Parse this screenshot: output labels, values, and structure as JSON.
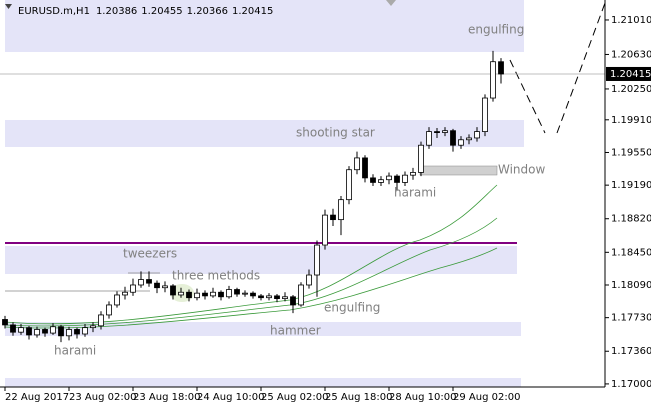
{
  "chart_data": {
    "type": "candlestick",
    "symbol": "EURUSD.m,H1",
    "header_values": [
      1.20386,
      1.20455,
      1.20366,
      1.20415
    ],
    "candles": [
      [
        1.1771,
        1.1775,
        1.1761,
        1.1765
      ],
      [
        1.1765,
        1.1768,
        1.1753,
        1.1757
      ],
      [
        1.1757,
        1.1766,
        1.1754,
        1.1762
      ],
      [
        1.1762,
        1.1764,
        1.1749,
        1.1754
      ],
      [
        1.1754,
        1.1763,
        1.1751,
        1.176
      ],
      [
        1.176,
        1.1762,
        1.1752,
        1.1756
      ],
      [
        1.1756,
        1.1767,
        1.1754,
        1.1763
      ],
      [
        1.1763,
        1.1765,
        1.1746,
        1.1753
      ],
      [
        1.1753,
        1.1763,
        1.1748,
        1.176
      ],
      [
        1.176,
        1.1762,
        1.175,
        1.1755
      ],
      [
        1.1755,
        1.1766,
        1.1752,
        1.1762
      ],
      [
        1.1762,
        1.1768,
        1.1757,
        1.1764
      ],
      [
        1.1764,
        1.178,
        1.176,
        1.1776
      ],
      [
        1.1776,
        1.1791,
        1.1772,
        1.1787
      ],
      [
        1.1787,
        1.1802,
        1.1784,
        1.1798
      ],
      [
        1.1798,
        1.1807,
        1.1793,
        1.1801
      ],
      [
        1.1801,
        1.1816,
        1.1797,
        1.1809
      ],
      [
        1.1809,
        1.1824,
        1.1806,
        1.1815
      ],
      [
        1.1815,
        1.1824,
        1.1807,
        1.1811
      ],
      [
        1.1811,
        1.1814,
        1.18,
        1.1806
      ],
      [
        1.1806,
        1.1813,
        1.1801,
        1.1808
      ],
      [
        1.1808,
        1.181,
        1.1793,
        1.1798
      ],
      [
        1.1798,
        1.1806,
        1.1795,
        1.1801
      ],
      [
        1.1801,
        1.1804,
        1.1791,
        1.1795
      ],
      [
        1.1795,
        1.1805,
        1.1792,
        1.18
      ],
      [
        1.18,
        1.1803,
        1.1793,
        1.1797
      ],
      [
        1.1797,
        1.1806,
        1.1795,
        1.1801
      ],
      [
        1.1801,
        1.1803,
        1.1792,
        1.1796
      ],
      [
        1.1796,
        1.1808,
        1.1794,
        1.1804
      ],
      [
        1.1804,
        1.1806,
        1.1796,
        1.1799
      ],
      [
        1.1799,
        1.1803,
        1.1796,
        1.18
      ],
      [
        1.18,
        1.1802,
        1.1794,
        1.1797
      ],
      [
        1.1797,
        1.1799,
        1.1792,
        1.1795
      ],
      [
        1.1795,
        1.18,
        1.1792,
        1.1797
      ],
      [
        1.1797,
        1.1799,
        1.179,
        1.1794
      ],
      [
        1.1794,
        1.1801,
        1.1791,
        1.1796
      ],
      [
        1.1796,
        1.1798,
        1.1778,
        1.1787
      ],
      [
        1.1787,
        1.1812,
        1.1785,
        1.1809
      ],
      [
        1.1809,
        1.1826,
        1.1805,
        1.182
      ],
      [
        1.182,
        1.1858,
        1.1796,
        1.1853
      ],
      [
        1.1853,
        1.1892,
        1.1848,
        1.1886
      ],
      [
        1.1886,
        1.1893,
        1.1874,
        1.1881
      ],
      [
        1.1881,
        1.1907,
        1.1864,
        1.1903
      ],
      [
        1.1903,
        1.194,
        1.1898,
        1.1936
      ],
      [
        1.1936,
        1.1956,
        1.1931,
        1.1949
      ],
      [
        1.1949,
        1.1952,
        1.1922,
        1.1927
      ],
      [
        1.1927,
        1.1931,
        1.1918,
        1.1922
      ],
      [
        1.1922,
        1.1929,
        1.1918,
        1.1925
      ],
      [
        1.1925,
        1.1933,
        1.192,
        1.1929
      ],
      [
        1.1929,
        1.1931,
        1.1913,
        1.1922
      ],
      [
        1.1922,
        1.1934,
        1.1918,
        1.193
      ],
      [
        1.193,
        1.1938,
        1.1925,
        1.1933
      ],
      [
        1.1933,
        1.1967,
        1.1929,
        1.1963
      ],
      [
        1.1963,
        1.1983,
        1.1959,
        1.1978
      ],
      [
        1.1978,
        1.1982,
        1.1971,
        1.1977
      ],
      [
        1.1977,
        1.1983,
        1.1973,
        1.1979
      ],
      [
        1.1979,
        1.1981,
        1.1956,
        1.1963
      ],
      [
        1.1963,
        1.1973,
        1.1959,
        1.1969
      ],
      [
        1.1969,
        1.1975,
        1.1964,
        1.1971
      ],
      [
        1.1971,
        1.1983,
        1.1967,
        1.1978
      ],
      [
        1.1978,
        1.2019,
        1.1973,
        1.2015
      ],
      [
        1.2015,
        1.2067,
        1.2011,
        1.2055
      ],
      [
        1.2055,
        1.2059,
        1.2031,
        1.20415
      ]
    ],
    "xlim": [
      -0.625,
      75
    ],
    "xticks": [
      {
        "value": 0,
        "label": "22 Aug 2017"
      },
      {
        "value": 8,
        "label": "23 Aug 02:00"
      },
      {
        "value": 16,
        "label": "23 Aug 18:00"
      },
      {
        "value": 24,
        "label": "24 Aug 10:00"
      },
      {
        "value": 32,
        "label": "25 Aug 02:00"
      },
      {
        "value": 40,
        "label": "25 Aug 18:00"
      },
      {
        "value": 48,
        "label": "28 Aug 10:00"
      },
      {
        "value": 56,
        "label": "29 Aug 02:00"
      }
    ],
    "ylim": [
      1.16966,
      1.2123
    ],
    "yticks": [
      {
        "value": 1.2101,
        "label": "1.21010"
      },
      {
        "value": 1.2063,
        "label": "1.20630"
      },
      {
        "value": 1.2025,
        "label": "1.20250"
      },
      {
        "value": 1.1991,
        "label": "1.19910"
      },
      {
        "value": 1.1955,
        "label": "1.19550"
      },
      {
        "value": 1.1919,
        "label": "1.19190"
      },
      {
        "value": 1.1882,
        "label": "1.18820"
      },
      {
        "value": 1.1845,
        "label": "1.18450"
      },
      {
        "value": 1.1809,
        "label": "1.18090"
      },
      {
        "value": 1.1773,
        "label": "1.17730"
      },
      {
        "value": 1.1736,
        "label": "1.17360"
      },
      {
        "value": 1.17,
        "label": "1.17000"
      }
    ],
    "last_price": 1.20415,
    "annotations": [
      "engulfing",
      "shooting star",
      "Window",
      "harami",
      "tweezers",
      "three methods",
      "engulfing",
      "hammer",
      "harami"
    ]
  }
}
